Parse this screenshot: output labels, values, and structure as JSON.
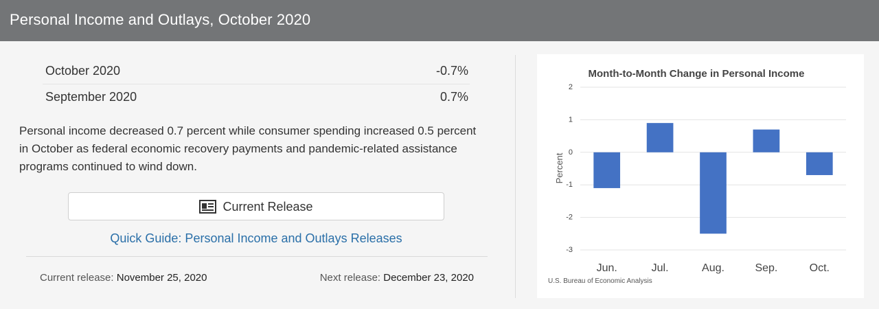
{
  "header": {
    "title": "Personal Income and Outlays, October 2020"
  },
  "stats": [
    {
      "label": "October 2020",
      "value": "-0.7%"
    },
    {
      "label": "September 2020",
      "value": "0.7%"
    }
  ],
  "summary": "Personal income decreased 0.7 percent while consumer spending increased 0.5 percent in October as federal economic recovery payments and pandemic-related assistance programs continued to wind down.",
  "buttons": {
    "current_release": "Current Release"
  },
  "links": {
    "quick_guide": "Quick Guide: Personal Income and Outlays Releases"
  },
  "release_dates": {
    "current_label": "Current release:",
    "current_value": "November 25, 2020",
    "next_label": "Next release:",
    "next_value": "December 23, 2020"
  },
  "icons": {
    "current_release": "newspaper-icon"
  },
  "colors": {
    "header_bg": "#737577",
    "link": "#2a6fa8",
    "bar": "#4472c4"
  },
  "chart_data": {
    "type": "bar",
    "title": "Month-to-Month Change in Personal Income",
    "ylabel": "Percent",
    "xlabel": "",
    "source": "U.S. Bureau of Economic Analysis",
    "categories": [
      "Jun.",
      "Jul.",
      "Aug.",
      "Sep.",
      "Oct."
    ],
    "values": [
      -1.1,
      0.9,
      -2.5,
      0.7,
      -0.7
    ],
    "ylim": [
      -3,
      2
    ],
    "yticks": [
      2,
      1,
      0,
      -1,
      -2,
      -3
    ],
    "grid": true,
    "legend": "none"
  }
}
